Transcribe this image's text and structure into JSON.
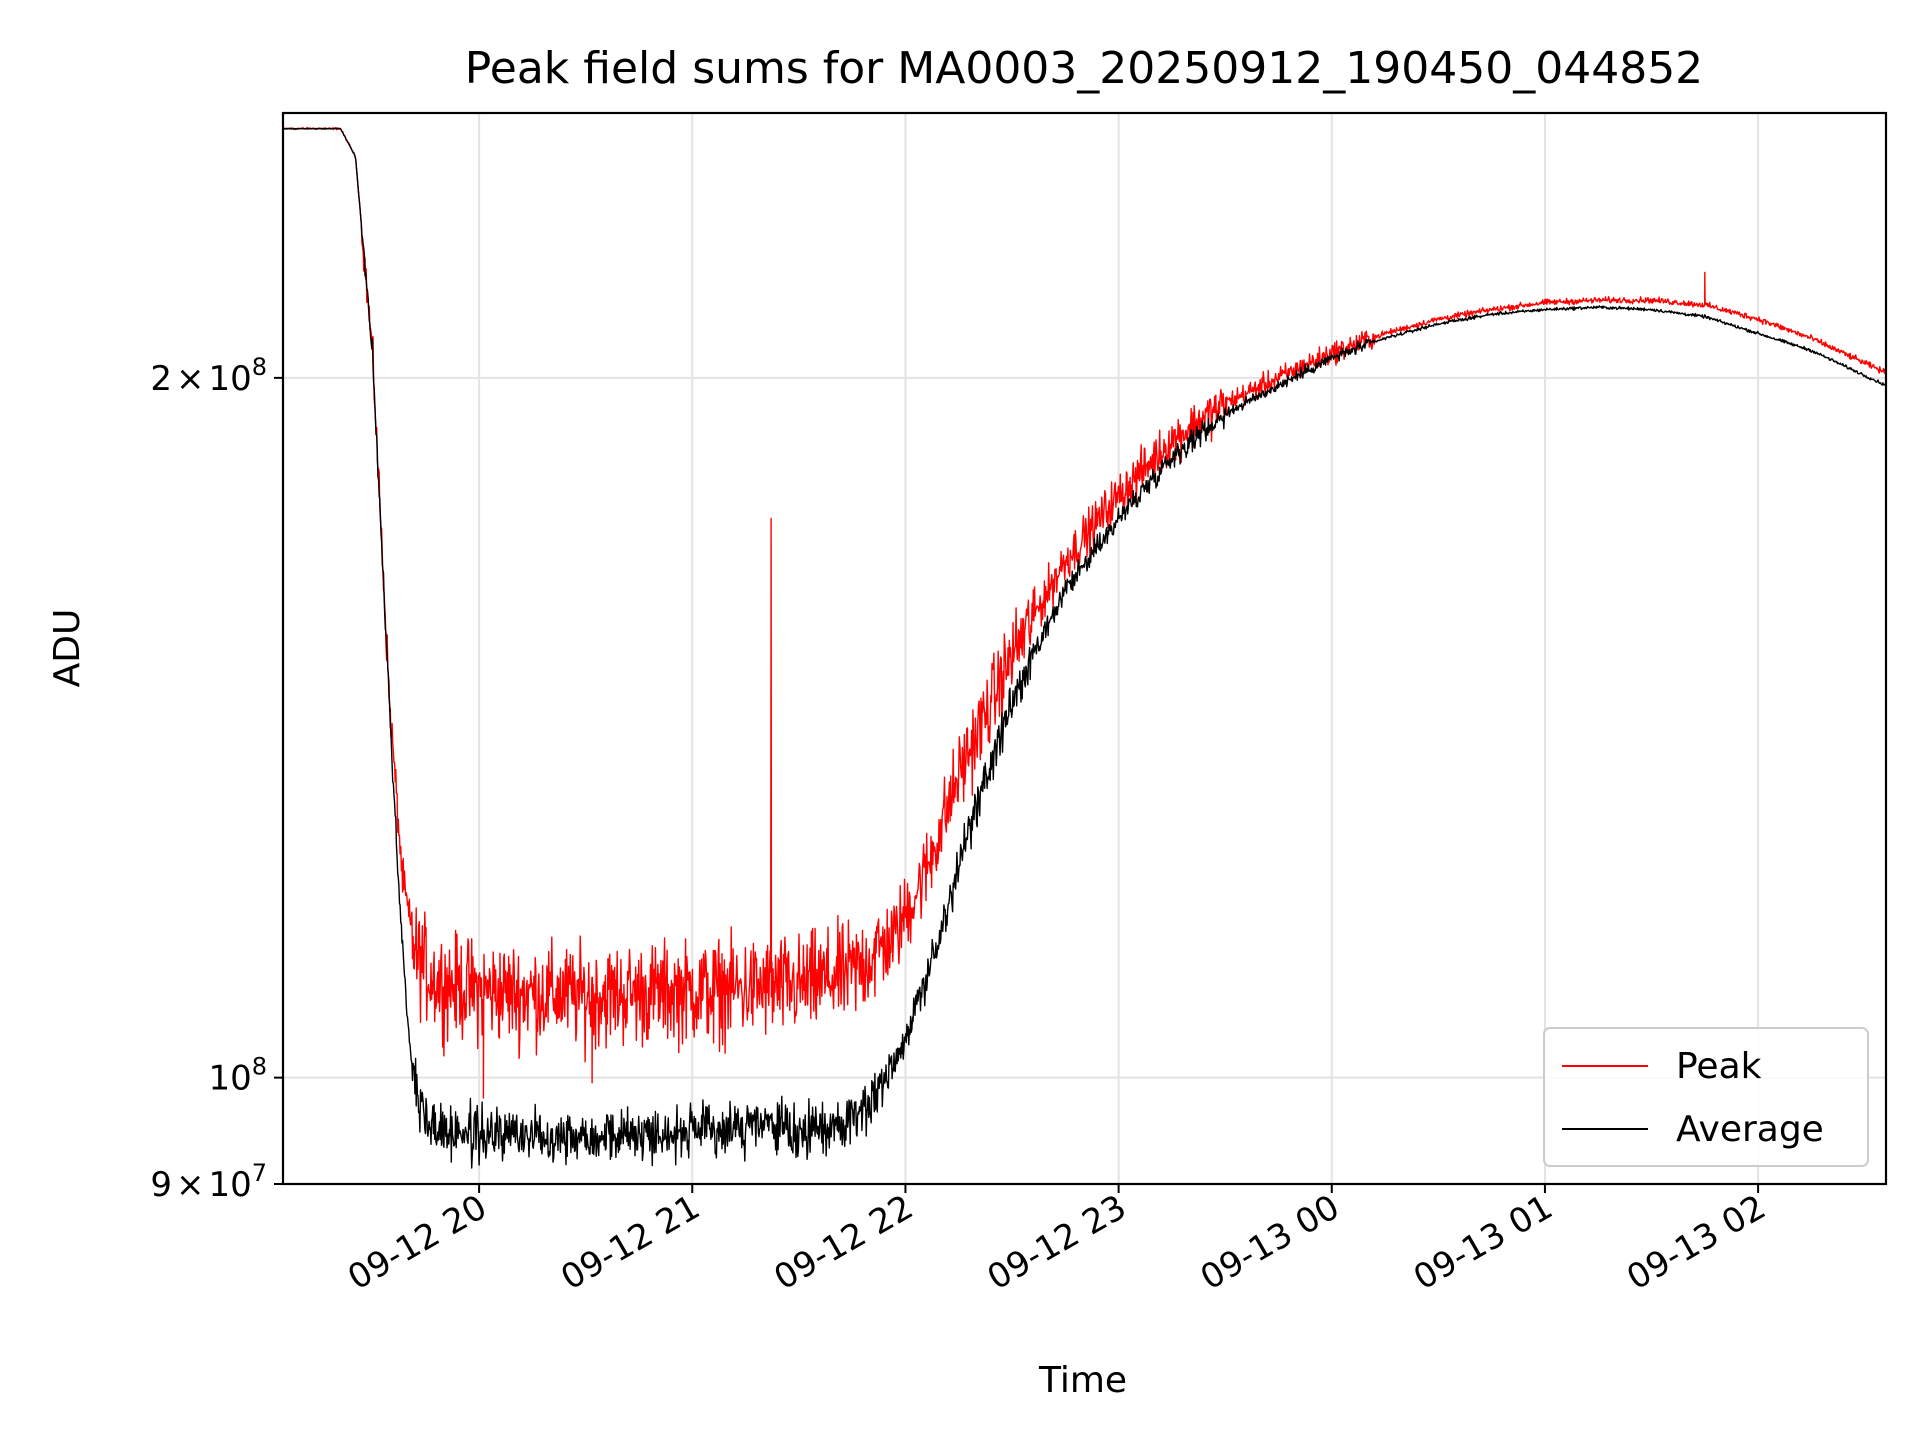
{
  "chart_data": {
    "type": "line",
    "title": "Peak field sums for MA0003_20250912_190450_044852",
    "xlabel": "Time",
    "ylabel": "ADU",
    "yscale": "log",
    "ylim": [
      90000000,
      260000000
    ],
    "xlim_hours_since_0912_00": [
      19.08,
      26.6
    ],
    "grid": true,
    "legend_location": "lower right",
    "y_ticks": [
      {
        "value": 200000000,
        "mantissa": "2",
        "times": "×",
        "base": "10",
        "exp": "8"
      },
      {
        "value": 100000000,
        "mantissa": "",
        "times": "",
        "base": "10",
        "exp": "8"
      },
      {
        "value": 90000000,
        "mantissa": "9",
        "times": "×",
        "base": "10",
        "exp": "7"
      }
    ],
    "x_ticks": [
      {
        "hour": 20,
        "label": "09-12 20"
      },
      {
        "hour": 21,
        "label": "09-12 21"
      },
      {
        "hour": 22,
        "label": "09-12 22"
      },
      {
        "hour": 23,
        "label": "09-12 23"
      },
      {
        "hour": 24,
        "label": "09-13 00"
      },
      {
        "hour": 25,
        "label": "09-13 01"
      },
      {
        "hour": 26,
        "label": "09-13 02"
      }
    ],
    "series": [
      {
        "name": "Peak",
        "color": "#ff0000",
        "noise_mult": 0.035,
        "points": [
          [
            19.08,
            256000000
          ],
          [
            19.35,
            256000000
          ],
          [
            19.42,
            249000000
          ],
          [
            19.5,
            205000000
          ],
          [
            19.58,
            145000000
          ],
          [
            19.64,
            122000000
          ],
          [
            19.7,
            113000000
          ],
          [
            19.8,
            110000000
          ],
          [
            20.0,
            109000000
          ],
          [
            20.5,
            108500000
          ],
          [
            21.0,
            109000000
          ],
          [
            21.5,
            109500000
          ],
          [
            21.75,
            111000000
          ],
          [
            21.95,
            115000000
          ],
          [
            22.1,
            123000000
          ],
          [
            22.25,
            135000000
          ],
          [
            22.5,
            152000000
          ],
          [
            22.75,
            167000000
          ],
          [
            23.0,
            178000000
          ],
          [
            23.25,
            188000000
          ],
          [
            23.5,
            195000000
          ],
          [
            23.75,
            200000000
          ],
          [
            24.0,
            205000000
          ],
          [
            24.25,
            209000000
          ],
          [
            24.5,
            212000000
          ],
          [
            24.75,
            214000000
          ],
          [
            25.0,
            215500000
          ],
          [
            25.25,
            216000000
          ],
          [
            25.5,
            216000000
          ],
          [
            25.75,
            215000000
          ],
          [
            26.0,
            212000000
          ],
          [
            26.25,
            208000000
          ],
          [
            26.6,
            201000000
          ]
        ],
        "spikes": [
          {
            "x": 21.37,
            "y": 174000000
          },
          {
            "x": 21.1,
            "y": 103500000
          },
          {
            "x": 20.02,
            "y": 98000000
          },
          {
            "x": 20.53,
            "y": 99500000
          },
          {
            "x": 25.75,
            "y": 222000000
          }
        ]
      },
      {
        "name": "Average",
        "color": "#000000",
        "noise_mult": 0.018,
        "points": [
          [
            19.08,
            256000000
          ],
          [
            19.35,
            256000000
          ],
          [
            19.42,
            249000000
          ],
          [
            19.5,
            205000000
          ],
          [
            19.57,
            150000000
          ],
          [
            19.63,
            118000000
          ],
          [
            19.67,
            104000000
          ],
          [
            19.72,
            97000000
          ],
          [
            19.8,
            95000000
          ],
          [
            20.0,
            94500000
          ],
          [
            20.5,
            94500000
          ],
          [
            21.0,
            94700000
          ],
          [
            21.36,
            95500000
          ],
          [
            21.5,
            94500000
          ],
          [
            21.7,
            95500000
          ],
          [
            21.85,
            98000000
          ],
          [
            22.0,
            104000000
          ],
          [
            22.15,
            114000000
          ],
          [
            22.3,
            128000000
          ],
          [
            22.5,
            145000000
          ],
          [
            22.75,
            162000000
          ],
          [
            23.0,
            174000000
          ],
          [
            23.25,
            185000000
          ],
          [
            23.5,
            193000000
          ],
          [
            23.75,
            198500000
          ],
          [
            24.0,
            204000000
          ],
          [
            24.25,
            208000000
          ],
          [
            24.5,
            211000000
          ],
          [
            24.75,
            213000000
          ],
          [
            25.0,
            214000000
          ],
          [
            25.25,
            214500000
          ],
          [
            25.5,
            214000000
          ],
          [
            25.75,
            212500000
          ],
          [
            26.0,
            209000000
          ],
          [
            26.25,
            205500000
          ],
          [
            26.6,
            198500000
          ]
        ],
        "spikes": []
      }
    ]
  }
}
